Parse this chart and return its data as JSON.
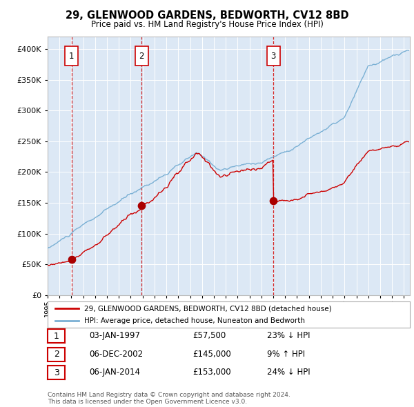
{
  "title1": "29, GLENWOOD GARDENS, BEDWORTH, CV12 8BD",
  "title2": "Price paid vs. HM Land Registry's House Price Index (HPI)",
  "plot_bg_color": "#dce8f5",
  "sale_points": [
    {
      "date_num": 1997.01,
      "price": 57500,
      "label": "1"
    },
    {
      "date_num": 2002.92,
      "price": 145000,
      "label": "2"
    },
    {
      "date_num": 2014.01,
      "price": 153000,
      "label": "3"
    }
  ],
  "sale_color": "#cc0000",
  "hpi_color": "#7ab0d4",
  "vline_color": "#cc0000",
  "legend_text1": "29, GLENWOOD GARDENS, BEDWORTH, CV12 8BD (detached house)",
  "legend_text2": "HPI: Average price, detached house, Nuneaton and Bedworth",
  "table_rows": [
    {
      "num": "1",
      "date": "03-JAN-1997",
      "price": "£57,500",
      "hpi": "23% ↓ HPI"
    },
    {
      "num": "2",
      "date": "06-DEC-2002",
      "price": "£145,000",
      "hpi": "9% ↑ HPI"
    },
    {
      "num": "3",
      "date": "06-JAN-2014",
      "price": "£153,000",
      "hpi": "24% ↓ HPI"
    }
  ],
  "footer": "Contains HM Land Registry data © Crown copyright and database right 2024.\nThis data is licensed under the Open Government Licence v3.0.",
  "ylim": [
    0,
    420000
  ],
  "xlim_start": 1995.0,
  "xlim_end": 2025.5
}
